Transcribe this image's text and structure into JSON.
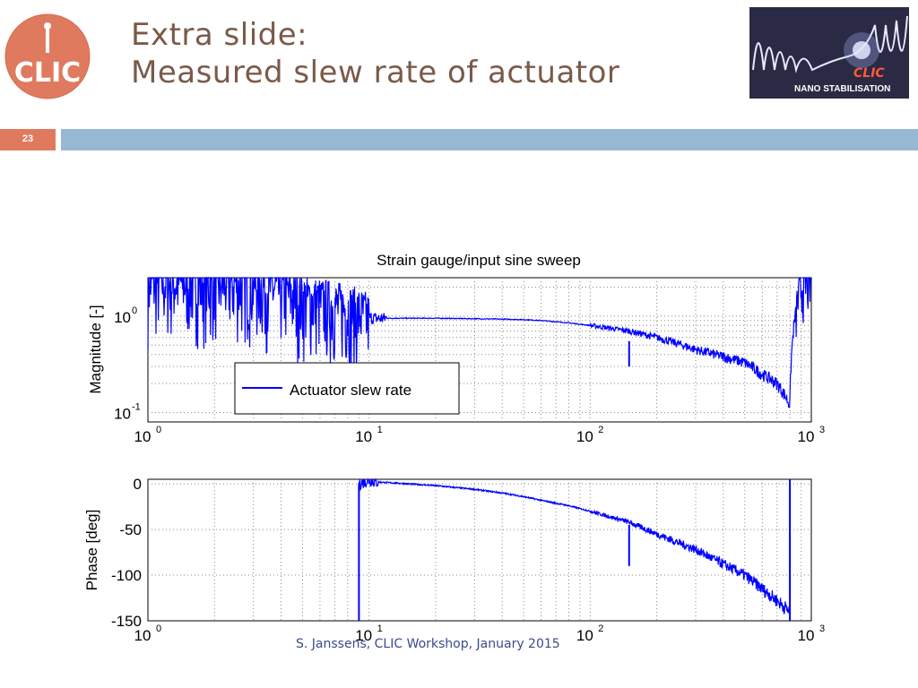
{
  "slide": {
    "title_line1": "Extra slide:",
    "title_line2": "Measured slew rate of actuator",
    "page_number": "23",
    "footer": "S. Janssens, CLIC Workshop, January 2015",
    "logo_text": "CLIC",
    "badge_brand": "CLIC",
    "badge_text": "NANO STABILISATION",
    "colors": {
      "title": "#7a5a4a",
      "logo": "#e07a5f",
      "bar": "#97b8d4",
      "series": "#0000ff",
      "footer": "#3b4b8c"
    }
  },
  "chart_data": [
    {
      "type": "line",
      "title": "Strain gauge/input sine sweep",
      "xlabel": "",
      "ylabel": "Magnitude [-]",
      "xscale": "log",
      "yscale": "log",
      "xlim": [
        1,
        1000
      ],
      "ylim": [
        0.08,
        2.5
      ],
      "xticks": [
        "10^0",
        "10^1",
        "10^2",
        "10^3"
      ],
      "yticks": [
        "10^-1",
        "10^0"
      ],
      "grid": true,
      "legend": {
        "entries": [
          "Actuator slew rate"
        ],
        "placement": "lower-left"
      },
      "series": [
        {
          "name": "Actuator slew rate",
          "x": [
            1,
            3,
            5,
            7,
            9,
            10,
            11,
            15,
            20,
            30,
            40,
            50,
            60,
            80,
            100,
            150,
            200,
            300,
            400,
            500,
            600,
            700,
            800,
            900,
            1000
          ],
          "y": [
            2.3,
            2.2,
            1.5,
            1.3,
            1.1,
            0.97,
            0.95,
            0.95,
            0.95,
            0.94,
            0.93,
            0.92,
            0.9,
            0.85,
            0.8,
            0.7,
            0.6,
            0.45,
            0.38,
            0.33,
            0.25,
            0.2,
            0.12,
            2.0,
            2.3
          ]
        }
      ]
    },
    {
      "type": "line",
      "title": "",
      "xlabel": "",
      "ylabel": "Phase [deg]",
      "xscale": "log",
      "xlim": [
        1,
        1000
      ],
      "ylim": [
        -150,
        5
      ],
      "xticks": [
        "10^0",
        "10^1",
        "10^2",
        "10^3"
      ],
      "yticks": [
        "0",
        "-50",
        "-100",
        "-150"
      ],
      "grid": true,
      "series": [
        {
          "name": "",
          "x": [
            9,
            10,
            11,
            15,
            20,
            30,
            40,
            50,
            60,
            80,
            100,
            150,
            200,
            300,
            400,
            500,
            600,
            700,
            800
          ],
          "y": [
            0,
            4,
            2,
            0,
            -2,
            -6,
            -10,
            -14,
            -18,
            -24,
            -30,
            -42,
            -55,
            -72,
            -88,
            -100,
            -115,
            -128,
            -140
          ]
        }
      ]
    }
  ]
}
